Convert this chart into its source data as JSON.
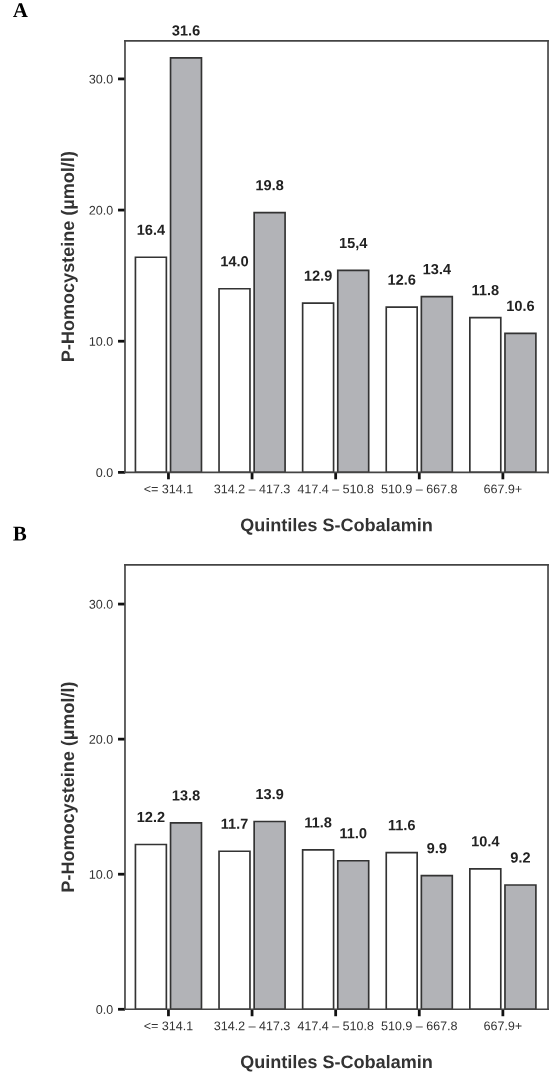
{
  "chart_data": [
    {
      "type": "bar",
      "title": "A",
      "xlabel": "Quintiles S-Cobalamin",
      "ylabel": "P-Homocysteine (µmol/l)",
      "categories": [
        "<= 314.1",
        "314.2 – 417.3",
        "417.4 – 510.8",
        "510.9 – 667.8",
        "667.9+"
      ],
      "series": [
        {
          "color": "#ffffff",
          "values": [
            16.4,
            14.0,
            12.9,
            12.6,
            11.8
          ],
          "value_labels": [
            "16.4",
            "14.0",
            "12.9",
            "12.6",
            "11.8"
          ]
        },
        {
          "color": "#b2b3b7",
          "values": [
            31.6,
            19.8,
            15.4,
            13.4,
            10.6
          ],
          "value_labels": [
            "31.6",
            "19.8",
            "15,4",
            "13.4",
            "10.6"
          ]
        }
      ],
      "ylim": [
        0,
        32.9
      ],
      "yticks": [
        {
          "value": 0,
          "label": "0.0"
        },
        {
          "value": 10,
          "label": "10.0"
        },
        {
          "value": 20,
          "label": "20.0"
        },
        {
          "value": 30,
          "label": "30.0"
        }
      ],
      "grid": false,
      "legend": false
    },
    {
      "type": "bar",
      "title": "B",
      "xlabel": "Quintiles S-Cobalamin",
      "ylabel": "P-Homocysteine (µmol/l)",
      "categories": [
        "<= 314.1",
        "314.2 – 417.3",
        "417.4 – 510.8",
        "510.9 – 667.8",
        "667.9+"
      ],
      "series": [
        {
          "color": "#ffffff",
          "values": [
            12.2,
            11.7,
            11.8,
            11.6,
            10.4
          ],
          "value_labels": [
            "12.2",
            "11.7",
            "11.8",
            "11.6",
            "10.4"
          ]
        },
        {
          "color": "#b2b3b7",
          "values": [
            13.8,
            13.9,
            11.0,
            9.9,
            9.2
          ],
          "value_labels": [
            "13.8",
            "13.9",
            "11.0",
            "9.9",
            "9.2"
          ]
        }
      ],
      "ylim": [
        0,
        32.9
      ],
      "yticks": [
        {
          "value": 0,
          "label": "0.0"
        },
        {
          "value": 10,
          "label": "10.0"
        },
        {
          "value": 20,
          "label": "20.0"
        },
        {
          "value": 30,
          "label": "30.0"
        }
      ],
      "grid": false,
      "legend": false
    }
  ]
}
